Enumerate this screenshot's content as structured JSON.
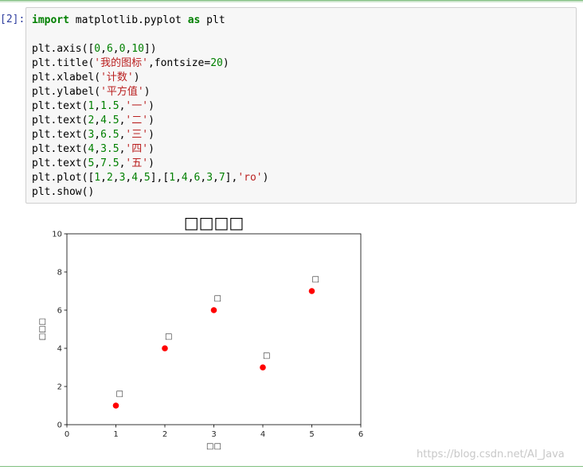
{
  "cell": {
    "prompt": "[2]:",
    "code_lines": [
      [
        {
          "t": "import",
          "c": "kw"
        },
        {
          "t": " matplotlib.pyplot "
        },
        {
          "t": "as",
          "c": "kw"
        },
        {
          "t": " plt"
        }
      ],
      [],
      [
        {
          "t": "plt.axis(["
        },
        {
          "t": "0",
          "c": "num"
        },
        {
          "t": ","
        },
        {
          "t": "6",
          "c": "num"
        },
        {
          "t": ","
        },
        {
          "t": "0",
          "c": "num"
        },
        {
          "t": ","
        },
        {
          "t": "10",
          "c": "num"
        },
        {
          "t": "])"
        }
      ],
      [
        {
          "t": "plt.title("
        },
        {
          "t": "'我的图标'",
          "c": "str"
        },
        {
          "t": ",fontsize="
        },
        {
          "t": "20",
          "c": "num"
        },
        {
          "t": ")"
        }
      ],
      [
        {
          "t": "plt.xlabel("
        },
        {
          "t": "'计数'",
          "c": "str"
        },
        {
          "t": ")"
        }
      ],
      [
        {
          "t": "plt.ylabel("
        },
        {
          "t": "'平方值'",
          "c": "str"
        },
        {
          "t": ")"
        }
      ],
      [
        {
          "t": "plt.text("
        },
        {
          "t": "1",
          "c": "num"
        },
        {
          "t": ","
        },
        {
          "t": "1.5",
          "c": "num"
        },
        {
          "t": ","
        },
        {
          "t": "'一'",
          "c": "str"
        },
        {
          "t": ")"
        }
      ],
      [
        {
          "t": "plt.text("
        },
        {
          "t": "2",
          "c": "num"
        },
        {
          "t": ","
        },
        {
          "t": "4.5",
          "c": "num"
        },
        {
          "t": ","
        },
        {
          "t": "'二'",
          "c": "str"
        },
        {
          "t": ")"
        }
      ],
      [
        {
          "t": "plt.text("
        },
        {
          "t": "3",
          "c": "num"
        },
        {
          "t": ","
        },
        {
          "t": "6.5",
          "c": "num"
        },
        {
          "t": ","
        },
        {
          "t": "'三'",
          "c": "str"
        },
        {
          "t": ")"
        }
      ],
      [
        {
          "t": "plt.text("
        },
        {
          "t": "4",
          "c": "num"
        },
        {
          "t": ","
        },
        {
          "t": "3.5",
          "c": "num"
        },
        {
          "t": ","
        },
        {
          "t": "'四'",
          "c": "str"
        },
        {
          "t": ")"
        }
      ],
      [
        {
          "t": "plt.text("
        },
        {
          "t": "5",
          "c": "num"
        },
        {
          "t": ","
        },
        {
          "t": "7.5",
          "c": "num"
        },
        {
          "t": ","
        },
        {
          "t": "'五'",
          "c": "str"
        },
        {
          "t": ")"
        }
      ],
      [
        {
          "t": "plt.plot(["
        },
        {
          "t": "1",
          "c": "num"
        },
        {
          "t": ","
        },
        {
          "t": "2",
          "c": "num"
        },
        {
          "t": ","
        },
        {
          "t": "3",
          "c": "num"
        },
        {
          "t": ","
        },
        {
          "t": "4",
          "c": "num"
        },
        {
          "t": ","
        },
        {
          "t": "5",
          "c": "num"
        },
        {
          "t": "],["
        },
        {
          "t": "1",
          "c": "num"
        },
        {
          "t": ","
        },
        {
          "t": "4",
          "c": "num"
        },
        {
          "t": ","
        },
        {
          "t": "6",
          "c": "num"
        },
        {
          "t": ","
        },
        {
          "t": "3",
          "c": "num"
        },
        {
          "t": ","
        },
        {
          "t": "7",
          "c": "num"
        },
        {
          "t": "],"
        },
        {
          "t": "'ro'",
          "c": "str"
        },
        {
          "t": ")"
        }
      ],
      [
        {
          "t": "plt.show()"
        }
      ]
    ]
  },
  "chart_data": {
    "type": "scatter",
    "title": "□□□□",
    "xlabel": "□□",
    "ylabel": "□□□",
    "xlim": [
      0,
      6
    ],
    "ylim": [
      0,
      10
    ],
    "x_ticks": [
      0,
      1,
      2,
      3,
      4,
      5,
      6
    ],
    "y_ticks": [
      0,
      2,
      4,
      6,
      8,
      10
    ],
    "grid": false,
    "series": [
      {
        "x": [
          1,
          2,
          3,
          4,
          5
        ],
        "y": [
          1,
          4,
          6,
          3,
          7
        ],
        "color": "#ff0000",
        "marker": "circle"
      }
    ],
    "annotations": [
      {
        "x": 1,
        "y": 1.5,
        "text": "□"
      },
      {
        "x": 2,
        "y": 4.5,
        "text": "□"
      },
      {
        "x": 3,
        "y": 6.5,
        "text": "□"
      },
      {
        "x": 4,
        "y": 3.5,
        "text": "□"
      },
      {
        "x": 5,
        "y": 7.5,
        "text": "□"
      }
    ]
  },
  "watermark": "https://blog.csdn.net/AI_Java"
}
